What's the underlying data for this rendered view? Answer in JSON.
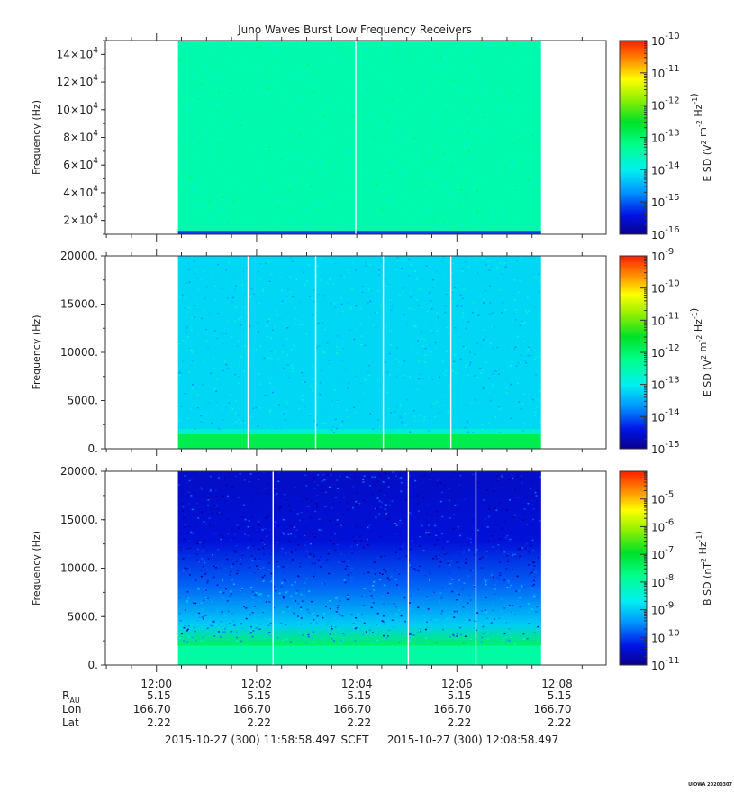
{
  "title": "Juno Waves Burst Low Frequency Receivers",
  "footer": {
    "start_time": "2015-10-27 (300) 11:58:58.497",
    "frame": "SCET",
    "end_time": "2015-10-27 (300) 12:08:58.497",
    "stamp": "UIOWA 20200307"
  },
  "time_axis": {
    "start_min": 0,
    "end_min": 10,
    "major_ticks": [
      1.02,
      3.02,
      5.02,
      7.02,
      9.02
    ],
    "major_labels": [
      "12:00",
      "12:02",
      "12:04",
      "12:06",
      "12:08"
    ],
    "data_span": [
      1.45,
      8.7
    ]
  },
  "ephemeris": {
    "row_labels": [
      {
        "main": "R",
        "sub": "AU"
      },
      {
        "main": "Lon",
        "sub": ""
      },
      {
        "main": "Lat",
        "sub": ""
      }
    ],
    "values": [
      [
        "5.15",
        "5.15",
        "5.15",
        "5.15",
        "5.15"
      ],
      [
        "166.70",
        "166.70",
        "166.70",
        "166.70",
        "166.70"
      ],
      [
        "2.22",
        "2.22",
        "2.22",
        "2.22",
        "2.22"
      ]
    ]
  },
  "chart_data": [
    {
      "type": "heatmap",
      "ylabel": "Frequency (Hz)",
      "ylim": [
        10000,
        150000
      ],
      "ytick_values": [
        20000,
        40000,
        60000,
        80000,
        100000,
        120000,
        140000
      ],
      "ytick_labels": [
        {
          "mant": "2×10",
          "exp": "4"
        },
        {
          "mant": "4×10",
          "exp": "4"
        },
        {
          "mant": "6×10",
          "exp": "4"
        },
        {
          "mant": "8×10",
          "exp": "4"
        },
        {
          "mant": "10×10",
          "exp": "4"
        },
        {
          "mant": "12×10",
          "exp": "4"
        },
        {
          "mant": "14×10",
          "exp": "4"
        }
      ],
      "colorbar": {
        "label_parts": [
          {
            "t": "E SD (V",
            "sup": false
          },
          {
            "t": "2",
            "sup": true
          },
          {
            "t": " m",
            "sup": false
          },
          {
            "t": "-2",
            "sup": true
          },
          {
            "t": " Hz",
            "sup": false
          },
          {
            "t": "-1",
            "sup": true
          },
          {
            "t": ")",
            "sup": false
          }
        ],
        "log_min": -16,
        "log_max": -10,
        "tick_exps": [
          "-10",
          "-11",
          "-12",
          "-13",
          "-14",
          "-15",
          "-16"
        ],
        "tick_values": [
          -10,
          -11,
          -12,
          -13,
          -14,
          -15,
          -16
        ]
      },
      "background_level": -13.5,
      "gap_times": [
        5.0
      ],
      "low_band": {
        "top": 12500,
        "level": -15.2
      }
    },
    {
      "type": "heatmap",
      "ylabel": "Frequency (Hz)",
      "ylim": [
        0,
        20000
      ],
      "ytick_values": [
        0,
        5000,
        10000,
        15000,
        20000
      ],
      "ytick_labels": [
        {
          "mant": "0.",
          "exp": ""
        },
        {
          "mant": "5000.",
          "exp": ""
        },
        {
          "mant": "10000.",
          "exp": ""
        },
        {
          "mant": "15000.",
          "exp": ""
        },
        {
          "mant": "20000.",
          "exp": ""
        }
      ],
      "colorbar": {
        "label_parts": [
          {
            "t": "E SD (V",
            "sup": false
          },
          {
            "t": "2",
            "sup": true
          },
          {
            "t": " m",
            "sup": false
          },
          {
            "t": "-2",
            "sup": true
          },
          {
            "t": " Hz",
            "sup": false
          },
          {
            "t": "-1",
            "sup": true
          },
          {
            "t": ")",
            "sup": false
          }
        ],
        "log_min": -15,
        "log_max": -9,
        "tick_exps": [
          "-9",
          "-10",
          "-11",
          "-12",
          "-13",
          "-14",
          "-15"
        ],
        "tick_values": [
          -9,
          -10,
          -11,
          -12,
          -13,
          -14,
          -15
        ]
      },
      "background_level": -13.2,
      "gap_times": [
        2.85,
        4.2,
        5.55,
        6.9
      ],
      "low_band": {
        "top": 1500,
        "level": -11.8
      }
    },
    {
      "type": "heatmap",
      "ylabel": "Frequency (Hz)",
      "ylim": [
        0,
        20000
      ],
      "ytick_values": [
        0,
        5000,
        10000,
        15000,
        20000
      ],
      "ytick_labels": [
        {
          "mant": "0.",
          "exp": ""
        },
        {
          "mant": "5000.",
          "exp": ""
        },
        {
          "mant": "10000.",
          "exp": ""
        },
        {
          "mant": "15000.",
          "exp": ""
        },
        {
          "mant": "20000.",
          "exp": ""
        }
      ],
      "colorbar": {
        "label_parts": [
          {
            "t": "B SD (nT",
            "sup": false
          },
          {
            "t": "2",
            "sup": true
          },
          {
            "t": " Hz",
            "sup": false
          },
          {
            "t": "-1",
            "sup": true
          },
          {
            "t": ")",
            "sup": false
          }
        ],
        "log_min": -11,
        "log_max": -4,
        "tick_exps": [
          "-5",
          "-6",
          "-7",
          "-8",
          "-9",
          "-10",
          "-11"
        ],
        "tick_values": [
          -5,
          -6,
          -7,
          -8,
          -9,
          -10,
          -11
        ]
      },
      "background_level": -10.4,
      "gap_times": [
        3.35,
        6.05,
        7.4
      ],
      "low_band": {
        "top": 2000,
        "level": -8.0
      }
    }
  ]
}
